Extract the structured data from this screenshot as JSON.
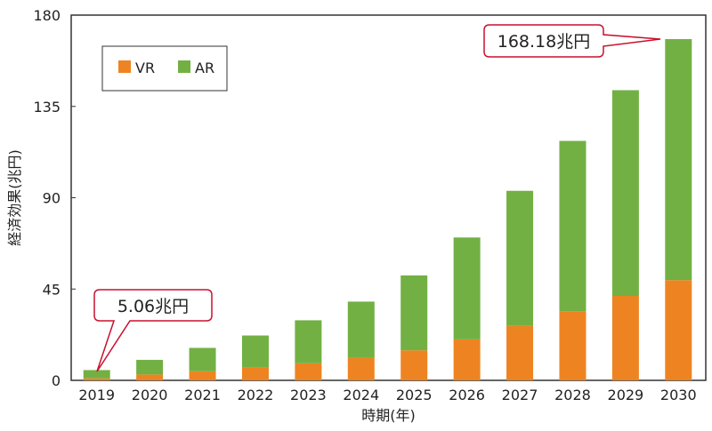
{
  "chart_data": {
    "type": "bar",
    "stacked": true,
    "title": "",
    "xlabel": "時期(年)",
    "ylabel": "経済効果(兆円)",
    "ylim": [
      0,
      180
    ],
    "yticks": [
      0,
      45,
      90,
      135,
      180
    ],
    "categories": [
      "2019",
      "2020",
      "2021",
      "2022",
      "2023",
      "2024",
      "2025",
      "2026",
      "2027",
      "2028",
      "2029",
      "2030"
    ],
    "series": [
      {
        "name": "VR",
        "color": "#ee8421",
        "values": [
          1.0,
          2.9,
          4.5,
          6.3,
          8.4,
          11.0,
          14.8,
          20.2,
          26.8,
          34.1,
          41.6,
          49.4
        ]
      },
      {
        "name": "AR",
        "color": "#72b043",
        "values": [
          4.06,
          7.2,
          11.5,
          15.8,
          21.2,
          27.8,
          36.9,
          50.2,
          66.6,
          83.9,
          101.4,
          118.78
        ]
      }
    ],
    "legend": "top-left",
    "annotations": [
      {
        "text": "5.06兆円",
        "category": "2019",
        "value": 5.06
      },
      {
        "text": "168.18兆円",
        "category": "2030",
        "value": 168.18
      }
    ]
  }
}
